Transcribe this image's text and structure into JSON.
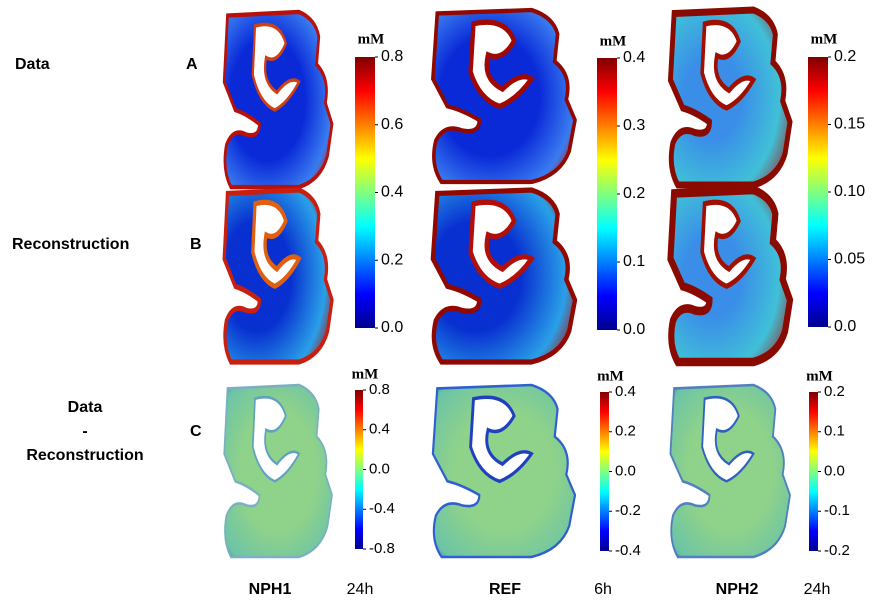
{
  "rows": [
    {
      "label": [
        "Data"
      ],
      "letter": "A"
    },
    {
      "label": [
        "Reconstruction"
      ],
      "letter": "B"
    },
    {
      "label": [
        "Data",
        "-",
        "Reconstruction"
      ],
      "letter": "C"
    }
  ],
  "columns": [
    {
      "name": "NPH1",
      "time": "24h"
    },
    {
      "name": "REF",
      "time": "6h"
    },
    {
      "name": "NPH2",
      "time": "24h"
    }
  ],
  "colorbars": [
    {
      "unit": "mM",
      "ticks": [
        0.8,
        0.6,
        0.4,
        0.2,
        {
          "value": 0,
          "label": "0.0"
        }
      ]
    },
    {
      "unit": "mM",
      "ticks": [
        0.4,
        0.3,
        0.2,
        0.1,
        {
          "value": 0,
          "label": "0.0"
        }
      ]
    },
    {
      "unit": "mM",
      "ticks": [
        0.2,
        0.15,
        {
          "value": 0.1,
          "label": "0.10"
        },
        0.05,
        {
          "value": 0,
          "label": "0.0"
        }
      ]
    },
    {
      "unit": "mM",
      "ticks": [
        0.8,
        0.4,
        {
          "value": 0,
          "label": "0.0"
        },
        -0.4,
        -0.8
      ]
    },
    {
      "unit": "mM",
      "ticks": [
        0.4,
        0.2,
        {
          "value": 0,
          "label": "0.0"
        },
        -0.2,
        -0.4
      ]
    },
    {
      "unit": "mM",
      "ticks": [
        0.2,
        0.1,
        {
          "value": 0,
          "label": "0.0"
        },
        -0.1,
        -0.2
      ]
    }
  ]
}
